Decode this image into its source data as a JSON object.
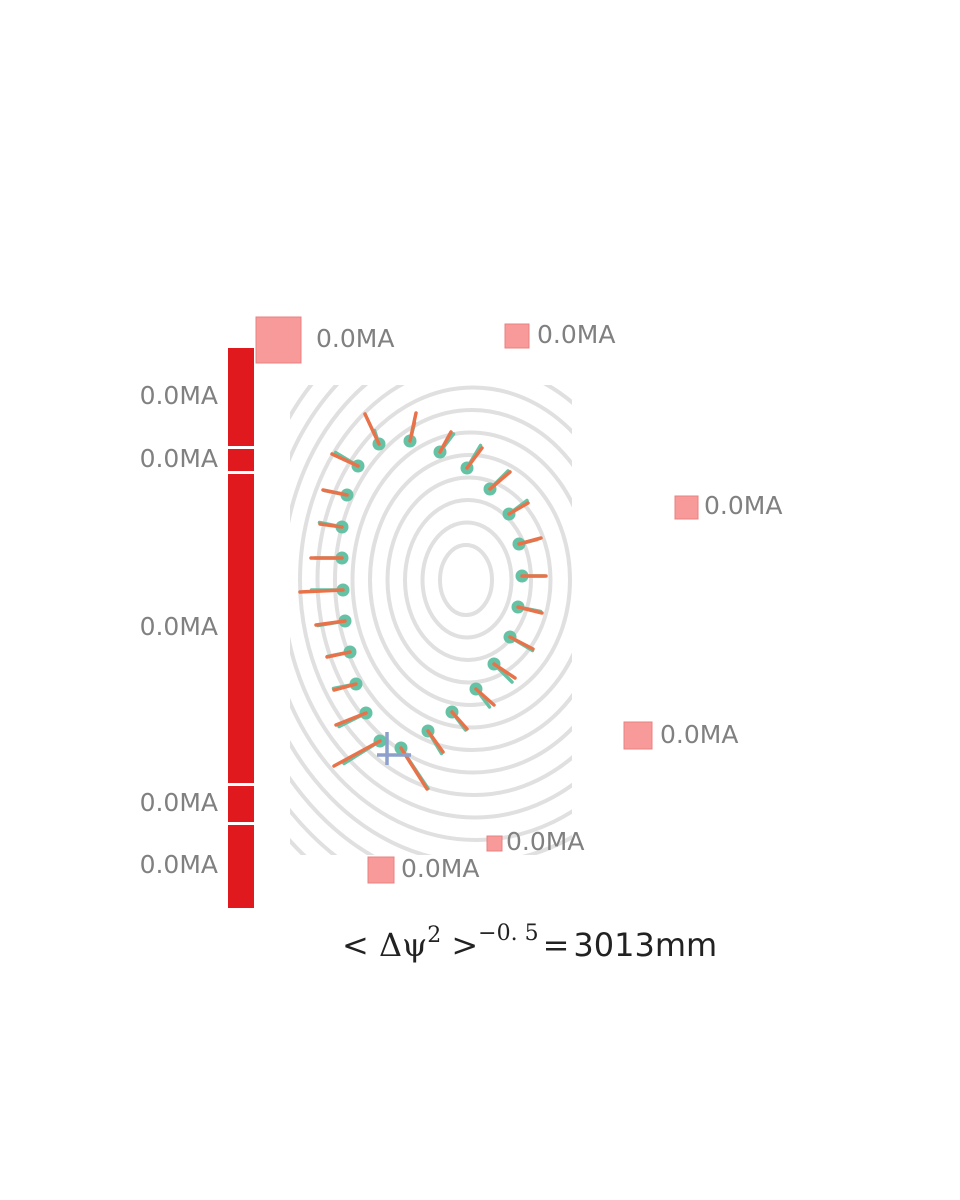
{
  "colors": {
    "contour": "#e0e0e0",
    "solenoid": "#e0191e",
    "coil": "#f89a9a",
    "sensor": "#66c2a5",
    "measured": "#66c2a5",
    "fitted": "#e8734a",
    "xpoint": "#8da0cb",
    "label": "#808080"
  },
  "solenoid_labels": [
    "0.0MA",
    "0.0MA",
    "0.0MA",
    "0.0MA",
    "0.0MA"
  ],
  "pf_coil_labels": [
    "0.0MA",
    "0.0MA",
    "0.0MA",
    "0.0MA",
    "0.0MA",
    "0.0MA"
  ],
  "formula": {
    "lhs": "< Δψ",
    "sup2": "2",
    "gt": " >",
    "exp": "−0. 5",
    "eq": "=",
    "value": "3013mm"
  }
}
